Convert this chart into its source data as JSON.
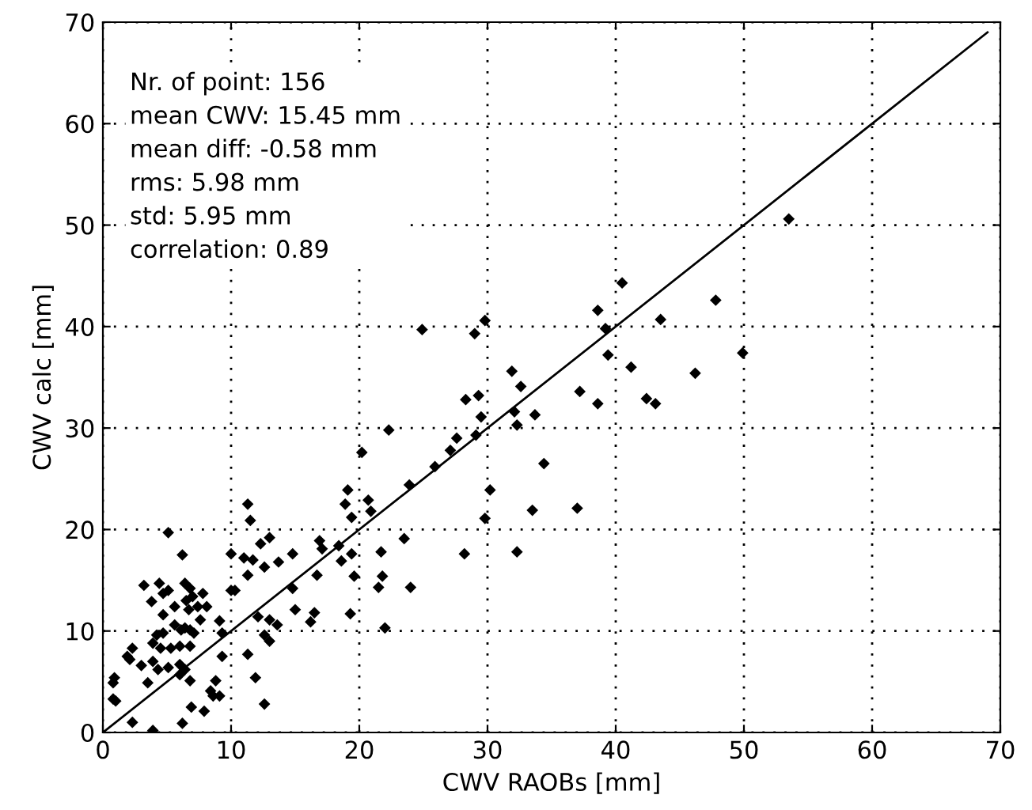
{
  "chart_data": {
    "type": "scatter",
    "xlabel": "CWV RAOBs [mm]",
    "ylabel": "CWV calc [mm]",
    "annotations": [
      "Nr. of point: 156\nmean CWV: 15.45 mm\nmean diff: -0.58 mm\nrms: 5.98 mm\nstd: 5.95 mm\ncorrelation: 0.89"
    ],
    "xlim": [
      0,
      70
    ],
    "ylim": [
      0,
      70
    ],
    "xticks": [
      0,
      10,
      20,
      30,
      40,
      50,
      60,
      70
    ],
    "yticks": [
      0,
      10,
      20,
      30,
      40,
      50,
      60,
      70
    ],
    "grid": true,
    "series": [
      {
        "color": "#000000",
        "marker": "diamond",
        "x": [
          5.1,
          6.2,
          10.0,
          11.0,
          11.7,
          12.3,
          13.0,
          12.6,
          13.7,
          14.8,
          11.3,
          3.2,
          4.4,
          3.8,
          4.7,
          5.1,
          5.6,
          4.7,
          6.4,
          6.8,
          6.5,
          7.0,
          7.8,
          6.7,
          7.4,
          8.1,
          7.6,
          6.4,
          6.8,
          7.1,
          6.1,
          5.6,
          9.1,
          10.0,
          10.3,
          9.3,
          12.1,
          13.0,
          14.8,
          15.0,
          12.6,
          13.0,
          13.6,
          4.7,
          4.2,
          3.9,
          4.5,
          5.3,
          6.0,
          6.8,
          2.3,
          2.1,
          1.9,
          3.0,
          3.9,
          4.3,
          5.1,
          6.0,
          6.4,
          6.0,
          3.5,
          0.9,
          0.8,
          0.8,
          1.0,
          6.8,
          9.3,
          8.8,
          8.4,
          8.6,
          9.1,
          11.3,
          11.9,
          12.6,
          6.9,
          7.9,
          2.3,
          3.9,
          6.2,
          28.3,
          29.3,
          29.5,
          32.1,
          32.3,
          27.6,
          27.1,
          29.1,
          22.3,
          20.2,
          25.9,
          23.9,
          19.1,
          18.9,
          20.7,
          20.9,
          19.4,
          30.2,
          29.8,
          23.5,
          28.2,
          32.3,
          21.7,
          18.4,
          19.4,
          18.6,
          19.6,
          21.8,
          21.5,
          24.0,
          16.9,
          17.1,
          16.7,
          11.3,
          11.5,
          16.5,
          16.2,
          19.3,
          22.0,
          53.5,
          47.8,
          40.5,
          38.6,
          39.2,
          43.5,
          39.4,
          41.2,
          49.9,
          46.2,
          37.2,
          38.6,
          42.4,
          43.1,
          29.0,
          29.8,
          31.9,
          32.6,
          33.7,
          34.4,
          33.5,
          37.0,
          24.9
        ],
        "values": [
          19.7,
          17.5,
          17.6,
          17.2,
          17.0,
          18.6,
          19.2,
          16.3,
          16.8,
          17.6,
          15.5,
          14.5,
          14.7,
          12.9,
          13.7,
          14.0,
          12.4,
          11.6,
          14.7,
          14.2,
          13.0,
          13.4,
          13.7,
          12.1,
          12.4,
          12.4,
          11.1,
          10.3,
          10.1,
          9.8,
          10.1,
          10.6,
          11.0,
          14.0,
          14.0,
          9.8,
          11.4,
          11.1,
          14.2,
          12.1,
          9.6,
          9.0,
          10.6,
          9.8,
          9.6,
          8.8,
          8.3,
          8.3,
          8.5,
          8.5,
          8.3,
          7.2,
          7.5,
          6.6,
          7.0,
          6.2,
          6.4,
          6.7,
          6.2,
          5.7,
          4.9,
          5.4,
          4.9,
          3.3,
          3.1,
          5.1,
          7.5,
          5.1,
          4.1,
          3.6,
          3.6,
          7.7,
          5.4,
          2.8,
          2.5,
          2.1,
          1.0,
          0.2,
          0.9,
          32.8,
          33.2,
          31.1,
          31.6,
          30.3,
          29.0,
          27.8,
          29.3,
          29.8,
          27.6,
          26.2,
          24.4,
          23.9,
          22.5,
          22.9,
          21.8,
          21.2,
          23.9,
          21.1,
          19.1,
          17.6,
          17.8,
          17.8,
          18.4,
          17.6,
          16.9,
          15.4,
          15.4,
          14.3,
          14.3,
          18.9,
          18.1,
          15.5,
          22.5,
          20.9,
          11.8,
          10.9,
          11.7,
          10.3,
          50.6,
          42.6,
          44.3,
          41.6,
          39.8,
          40.7,
          37.2,
          36.0,
          37.4,
          35.4,
          33.6,
          32.4,
          32.9,
          32.4,
          39.3,
          40.6,
          35.6,
          34.1,
          31.3,
          26.5,
          21.9,
          22.1,
          39.7
        ]
      },
      {
        "type": "line",
        "color": "#000000",
        "marker": "none",
        "line_style": "solid",
        "x": [
          0,
          69
        ],
        "values": [
          0,
          69
        ]
      }
    ]
  }
}
